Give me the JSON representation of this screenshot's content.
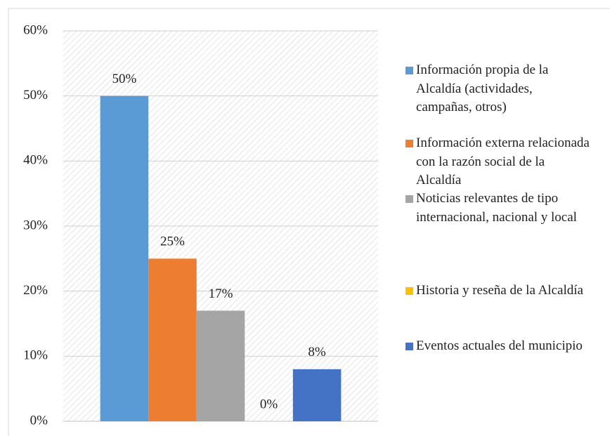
{
  "chart_data": {
    "type": "bar",
    "categories": [
      null
    ],
    "series": [
      {
        "name": "Información propia de la Alcaldía (actividades, campañas, otros)",
        "color": "#5b9bd5",
        "values": [
          50
        ],
        "value_labels": [
          "50%"
        ]
      },
      {
        "name": "Información externa relacionada con la razón social de la Alcaldía",
        "color": "#ed7d31",
        "values": [
          25
        ],
        "value_labels": [
          "25%"
        ]
      },
      {
        "name": "Noticias relevantes de tipo internacional, nacional y local",
        "color": "#a5a5a5",
        "values": [
          17
        ],
        "value_labels": [
          "17%"
        ]
      },
      {
        "name": "Historia y reseña de la Alcaldía",
        "color": "#ffc000",
        "values": [
          0
        ],
        "value_labels": [
          "0%"
        ]
      },
      {
        "name": "Eventos actuales del municipio",
        "color": "#4472c4",
        "values": [
          8
        ],
        "value_labels": [
          "8%"
        ]
      }
    ],
    "ylim": [
      0,
      60
    ],
    "yticks": [
      {
        "value": 0,
        "label": "0%"
      },
      {
        "value": 10,
        "label": "10%"
      },
      {
        "value": 20,
        "label": "20%"
      },
      {
        "value": 30,
        "label": "30%"
      },
      {
        "value": 40,
        "label": "40%"
      },
      {
        "value": 50,
        "label": "50%"
      },
      {
        "value": 60,
        "label": "60%"
      }
    ],
    "grid": true,
    "legend": "right"
  }
}
